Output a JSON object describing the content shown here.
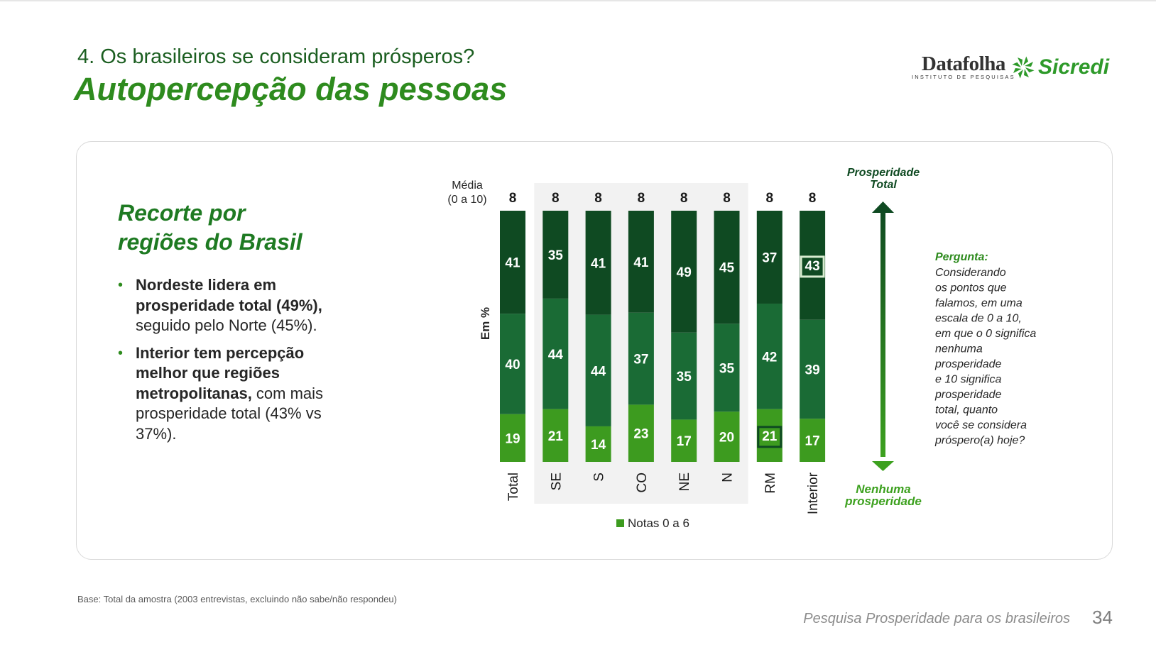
{
  "header": {
    "subtitle": "4. Os brasileiros se consideram prósperos?",
    "title": "Autopercepção das pessoas",
    "logo_datafolha": "Datafolha",
    "logo_datafolha_sub": "INSTITUTO DE PESQUISAS",
    "logo_sicredi": "Sicredi"
  },
  "card": {
    "section_title_line1": "Recorte por",
    "section_title_line2": "regiões do Brasil",
    "bullet1_bold": "Nordeste lidera em prosperidade total (49%),",
    "bullet1_rest": " seguido pelo Norte (45%).",
    "bullet2_bold": "Interior tem percepção melhor que regiões metropolitanas,",
    "bullet2_rest": " com mais prosperidade total (43% vs 37%).",
    "question_label": "Pergunta:",
    "question_lines": [
      "Considerando",
      "os pontos que",
      "falamos, em uma",
      "escala  de 0 a 10,",
      "em que o 0 significa",
      "nenhuma",
      "prosperidade",
      "e 10 significa",
      "prosperidade",
      "total, quanto",
      "você se considera",
      "próspero(a) hoje?"
    ],
    "arrow_top_line1": "Prosperidade",
    "arrow_top_line2": "Total",
    "arrow_bottom_line1": "Nenhuma",
    "arrow_bottom_line2": "prosperidade"
  },
  "chart_data": {
    "type": "bar",
    "stacked": true,
    "ylabel": "Em %",
    "mean_label_line1": "Média",
    "mean_label_line2": "(0 a 10)",
    "categories": [
      "Total",
      "SE",
      "S",
      "CO",
      "NE",
      "N",
      "RM",
      "Interior"
    ],
    "means": [
      8,
      8,
      8,
      8,
      8,
      8,
      8,
      8
    ],
    "series": [
      {
        "name": "Notas 0 a 6",
        "values": [
          19,
          21,
          14,
          23,
          17,
          20,
          21,
          17
        ],
        "color": "#3d9b1f"
      },
      {
        "values": [
          40,
          44,
          44,
          37,
          35,
          35,
          42,
          39
        ],
        "color": "#1a6b35"
      },
      {
        "values": [
          41,
          35,
          41,
          41,
          49,
          45,
          37,
          43
        ],
        "color": "#0f4a22"
      }
    ],
    "highlighted_categories": [
      "SE",
      "S",
      "CO",
      "NE",
      "N"
    ],
    "boxed_marks": [
      {
        "category": "RM",
        "series": 0
      },
      {
        "category": "Interior",
        "series": 2
      }
    ],
    "legend": [
      "Notas 0 a 6"
    ],
    "legend_position": "bottom"
  },
  "footer": {
    "base_note": "Base: Total da amostra (2003 entrevistas, excluindo não sabe/não respondeu)",
    "survey_name": "Pesquisa Prosperidade para os brasileiros",
    "page_number": "34"
  },
  "colors": {
    "title_green": "#2e8b1e",
    "subtitle_green": "#1b5e20",
    "light_bar": "#3d9b1f",
    "mid_bar": "#1a6b35",
    "dark_bar": "#0f4a22",
    "highlight_band": "#f2f2f2"
  }
}
